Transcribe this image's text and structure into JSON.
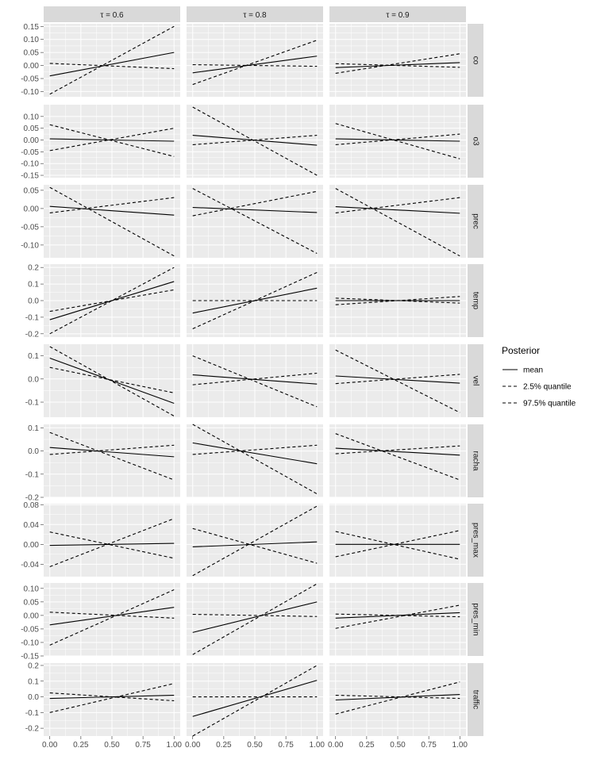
{
  "chart_data": {
    "type": "line",
    "facet_columns": [
      {
        "prefix": "τ",
        "op": "=",
        "value": "0.6"
      },
      {
        "prefix": "τ",
        "op": "=",
        "value": "0.8"
      },
      {
        "prefix": "τ",
        "op": "=",
        "value": "0.9"
      }
    ],
    "x_ticks": [
      "0.00",
      "0.25",
      "0.50",
      "0.75",
      "1.00"
    ],
    "xlim": [
      0,
      1
    ],
    "grid": true,
    "legend": {
      "title": "Posterior",
      "position": "right",
      "entries": [
        {
          "label": "mean",
          "dash": "solid"
        },
        {
          "label": "2.5% quantile",
          "dash": "dashed"
        },
        {
          "label": "97.5% quantile",
          "dash": "dashed"
        }
      ]
    },
    "rows": [
      {
        "name": "co",
        "ylim": [
          -0.12,
          0.16
        ],
        "y_ticks": [
          0.15,
          0.1,
          0.05,
          0.0,
          -0.05,
          -0.1
        ],
        "y_tick_labels": [
          "0.15",
          "0.10",
          "0.05",
          "0.00",
          "-0.05",
          "-0.10"
        ],
        "panels": [
          {
            "mean": [
              -0.04,
              0.05
            ],
            "q025": [
              -0.11,
              0.15
            ],
            "q975": [
              0.008,
              -0.012
            ]
          },
          {
            "mean": [
              -0.028,
              0.036
            ],
            "q025": [
              -0.073,
              0.097
            ],
            "q975": [
              0.003,
              -0.003
            ]
          },
          {
            "mean": [
              -0.008,
              0.011
            ],
            "q025": [
              -0.03,
              0.045
            ],
            "q975": [
              0.007,
              -0.007
            ]
          }
        ]
      },
      {
        "name": "o3",
        "ylim": [
          -0.16,
          0.15
        ],
        "y_ticks": [
          0.1,
          0.05,
          0.0,
          -0.05,
          -0.1,
          -0.15
        ],
        "y_tick_labels": [
          "0.10",
          "0.05",
          "0.00",
          "-0.05",
          "-0.10",
          "-0.15"
        ],
        "panels": [
          {
            "mean": [
              0.005,
              -0.005
            ],
            "q025": [
              0.065,
              -0.07
            ],
            "q975": [
              -0.045,
              0.05
            ]
          },
          {
            "mean": [
              0.02,
              -0.022
            ],
            "q025": [
              0.14,
              -0.15
            ],
            "q975": [
              -0.02,
              0.02
            ]
          },
          {
            "mean": [
              0.005,
              -0.005
            ],
            "q025": [
              0.07,
              -0.08
            ],
            "q975": [
              -0.02,
              0.025
            ]
          }
        ]
      },
      {
        "name": "prec",
        "ylim": [
          -0.135,
          0.065
        ],
        "y_ticks": [
          0.05,
          0.0,
          -0.05,
          -0.1
        ],
        "y_tick_labels": [
          "0.05",
          "0.00",
          "-0.05",
          "-0.10"
        ],
        "panels": [
          {
            "mean": [
              0.006,
              -0.018
            ],
            "q025": [
              0.058,
              -0.13
            ],
            "q975": [
              -0.012,
              0.03
            ]
          },
          {
            "mean": [
              0.003,
              -0.011
            ],
            "q025": [
              0.055,
              -0.123
            ],
            "q975": [
              -0.02,
              0.047
            ]
          },
          {
            "mean": [
              0.005,
              -0.013
            ],
            "q025": [
              0.055,
              -0.13
            ],
            "q975": [
              -0.012,
              0.03
            ]
          }
        ]
      },
      {
        "name": "temp",
        "ylim": [
          -0.22,
          0.22
        ],
        "y_ticks": [
          0.2,
          0.1,
          0.0,
          -0.1,
          -0.2
        ],
        "y_tick_labels": [
          "0.2",
          "0.1",
          "0.0",
          "-0.1",
          "-0.2"
        ],
        "panels": [
          {
            "mean": [
              -0.115,
              0.115
            ],
            "q025": [
              -0.2,
              0.2
            ],
            "q975": [
              -0.065,
              0.065
            ]
          },
          {
            "mean": [
              -0.075,
              0.075
            ],
            "q025": [
              -0.17,
              0.17
            ],
            "q975": [
              0.0,
              0.0
            ]
          },
          {
            "mean": [
              0.0,
              0.0
            ],
            "q025": [
              -0.025,
              0.025
            ],
            "q975": [
              0.015,
              -0.015
            ]
          }
        ]
      },
      {
        "name": "vel",
        "ylim": [
          -0.165,
          0.15
        ],
        "y_ticks": [
          0.1,
          0.0,
          -0.1
        ],
        "y_tick_labels": [
          "0.1",
          "0.0",
          "-0.1"
        ],
        "panels": [
          {
            "mean": [
              0.09,
              -0.105
            ],
            "q025": [
              0.14,
              -0.16
            ],
            "q975": [
              0.05,
              -0.06
            ]
          },
          {
            "mean": [
              0.018,
              -0.022
            ],
            "q025": [
              0.1,
              -0.12
            ],
            "q975": [
              -0.025,
              0.025
            ]
          },
          {
            "mean": [
              0.013,
              -0.018
            ],
            "q025": [
              0.125,
              -0.145
            ],
            "q975": [
              -0.02,
              0.02
            ]
          }
        ]
      },
      {
        "name": "racha",
        "ylim": [
          -0.2,
          0.115
        ],
        "y_ticks": [
          0.1,
          0.0,
          -0.1,
          -0.2
        ],
        "y_tick_labels": [
          "0.1",
          "0.0",
          "-0.1",
          "-0.2"
        ],
        "panels": [
          {
            "mean": [
              0.015,
              -0.025
            ],
            "q025": [
              0.08,
              -0.125
            ],
            "q975": [
              -0.015,
              0.025
            ]
          },
          {
            "mean": [
              0.035,
              -0.055
            ],
            "q025": [
              0.115,
              -0.185
            ],
            "q975": [
              -0.015,
              0.025
            ]
          },
          {
            "mean": [
              0.012,
              -0.018
            ],
            "q025": [
              0.075,
              -0.125
            ],
            "q975": [
              -0.012,
              0.022
            ]
          }
        ]
      },
      {
        "name": "pres_max",
        "ylim": [
          -0.065,
          0.082
        ],
        "y_ticks": [
          0.08,
          0.04,
          0.0,
          -0.04
        ],
        "y_tick_labels": [
          "0.08",
          "0.04",
          "0.00",
          "-0.04"
        ],
        "panels": [
          {
            "mean": [
              -0.002,
              0.002
            ],
            "q025": [
              -0.045,
              0.052
            ],
            "q975": [
              0.025,
              -0.028
            ]
          },
          {
            "mean": [
              -0.005,
              0.005
            ],
            "q025": [
              -0.063,
              0.077
            ],
            "q975": [
              0.032,
              -0.038
            ]
          },
          {
            "mean": [
              0.0,
              0.0
            ],
            "q025": [
              -0.025,
              0.028
            ],
            "q975": [
              0.026,
              -0.03
            ]
          }
        ]
      },
      {
        "name": "pres_min",
        "ylim": [
          -0.15,
          0.12
        ],
        "y_ticks": [
          0.1,
          0.05,
          0.0,
          -0.05,
          -0.1,
          -0.15
        ],
        "y_tick_labels": [
          "0.10",
          "0.05",
          "0.00",
          "-0.05",
          "-0.10",
          "-0.15"
        ],
        "panels": [
          {
            "mean": [
              -0.035,
              0.03
            ],
            "q025": [
              -0.11,
              0.095
            ],
            "q975": [
              0.012,
              -0.01
            ]
          },
          {
            "mean": [
              -0.063,
              0.05
            ],
            "q025": [
              -0.145,
              0.117
            ],
            "q975": [
              0.004,
              -0.004
            ]
          },
          {
            "mean": [
              -0.01,
              0.01
            ],
            "q025": [
              -0.048,
              0.038
            ],
            "q975": [
              0.005,
              -0.005
            ]
          }
        ]
      },
      {
        "name": "traffic",
        "ylim": [
          -0.25,
          0.215
        ],
        "y_ticks": [
          0.2,
          0.1,
          0.0,
          -0.1,
          -0.2
        ],
        "y_tick_labels": [
          "0.2",
          "0.1",
          "0.0",
          "-0.1",
          "-0.2"
        ],
        "panels": [
          {
            "mean": [
              -0.01,
              0.01
            ],
            "q025": [
              -0.1,
              0.085
            ],
            "q975": [
              0.025,
              -0.025
            ]
          },
          {
            "mean": [
              -0.125,
              0.105
            ],
            "q025": [
              -0.25,
              0.2
            ],
            "q975": [
              0.0,
              0.0
            ]
          },
          {
            "mean": [
              -0.02,
              0.015
            ],
            "q025": [
              -0.11,
              0.095
            ],
            "q975": [
              0.01,
              -0.01
            ]
          }
        ]
      }
    ]
  }
}
